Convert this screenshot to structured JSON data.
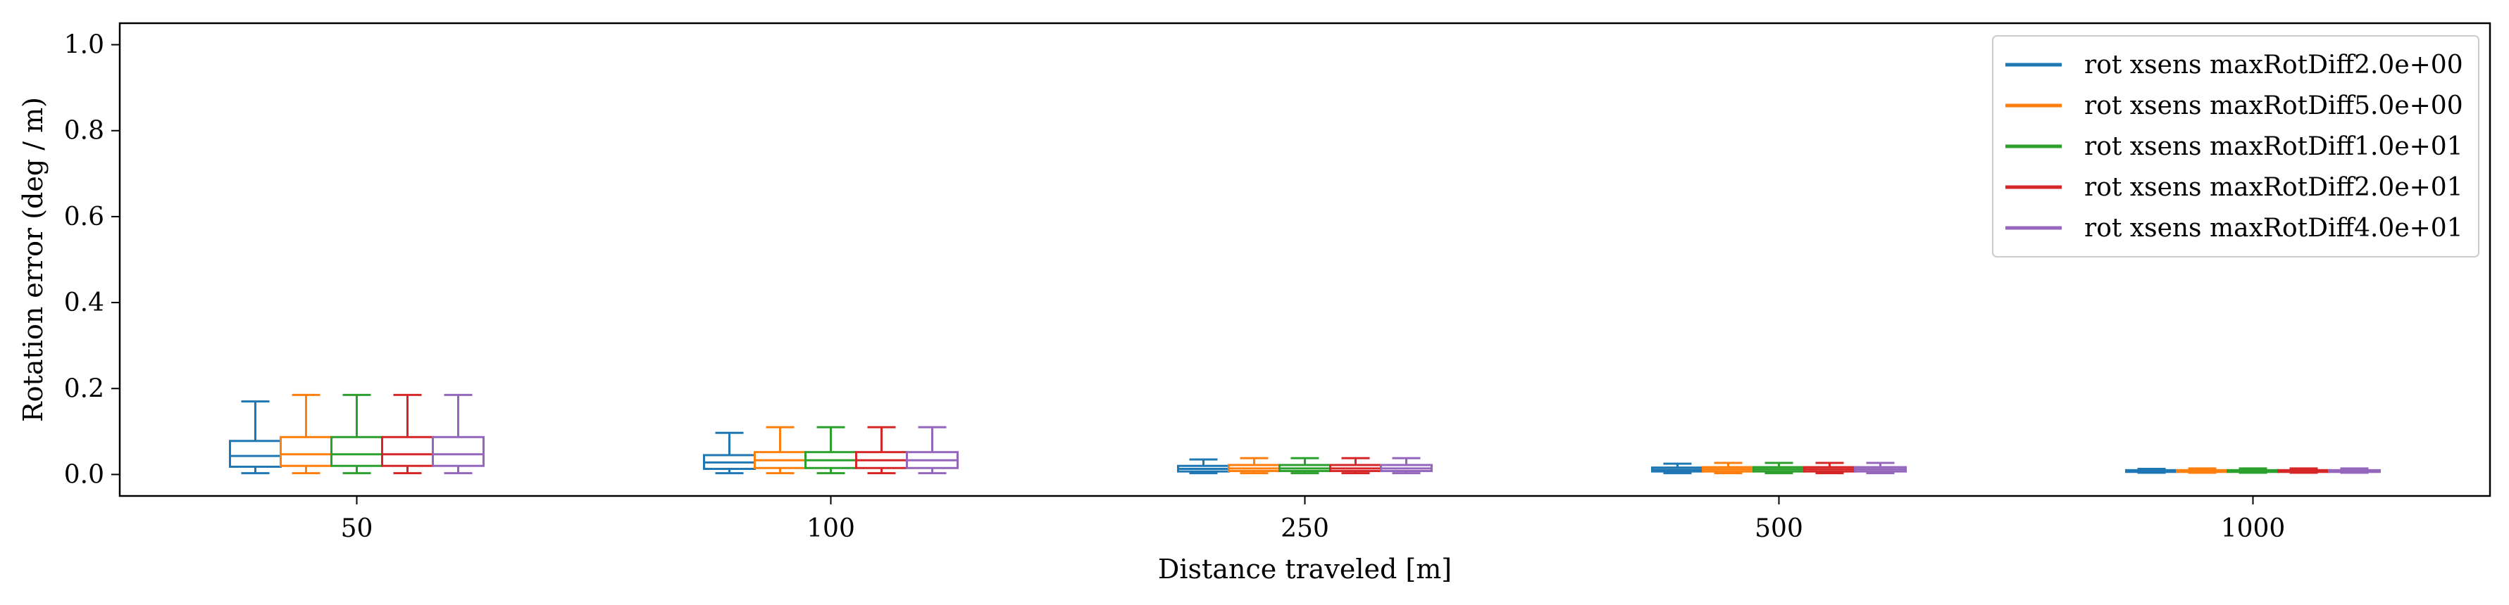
{
  "chart_data": {
    "type": "boxplot",
    "xlabel": "Distance traveled [m]",
    "ylabel": "Rotation error (deg / m)",
    "ylim": [
      -0.05,
      1.05
    ],
    "yticks": [
      0.0,
      0.2,
      0.4,
      0.6,
      0.8,
      1.0
    ],
    "ytick_labels": [
      "0.0",
      "0.2",
      "0.4",
      "0.6",
      "0.8",
      "1.0"
    ],
    "categories": [
      "50",
      "100",
      "250",
      "500",
      "1000"
    ],
    "legend_position": "top-right",
    "grid": false,
    "series": [
      {
        "name": "rot xsens maxRotDiff2.0e+00",
        "color": "#1f77b4",
        "boxes": [
          {
            "min": 0.003,
            "q1": 0.018,
            "median": 0.043,
            "q3": 0.078,
            "max": 0.17
          },
          {
            "min": 0.003,
            "q1": 0.013,
            "median": 0.028,
            "q3": 0.045,
            "max": 0.097
          },
          {
            "min": 0.003,
            "q1": 0.007,
            "median": 0.013,
            "q3": 0.02,
            "max": 0.035
          },
          {
            "min": 0.003,
            "q1": 0.007,
            "median": 0.011,
            "q3": 0.016,
            "max": 0.025
          },
          {
            "min": 0.004,
            "q1": 0.006,
            "median": 0.008,
            "q3": 0.01,
            "max": 0.013
          }
        ]
      },
      {
        "name": "rot xsens maxRotDiff5.0e+00",
        "color": "#ff7f0e",
        "boxes": [
          {
            "min": 0.003,
            "q1": 0.02,
            "median": 0.047,
            "q3": 0.087,
            "max": 0.185
          },
          {
            "min": 0.003,
            "q1": 0.015,
            "median": 0.033,
            "q3": 0.052,
            "max": 0.11
          },
          {
            "min": 0.003,
            "q1": 0.008,
            "median": 0.014,
            "q3": 0.022,
            "max": 0.038
          },
          {
            "min": 0.003,
            "q1": 0.007,
            "median": 0.012,
            "q3": 0.017,
            "max": 0.027
          },
          {
            "min": 0.004,
            "q1": 0.006,
            "median": 0.008,
            "q3": 0.01,
            "max": 0.014
          }
        ]
      },
      {
        "name": "rot xsens maxRotDiff1.0e+01",
        "color": "#2ca02c",
        "boxes": [
          {
            "min": 0.003,
            "q1": 0.02,
            "median": 0.047,
            "q3": 0.087,
            "max": 0.185
          },
          {
            "min": 0.003,
            "q1": 0.015,
            "median": 0.033,
            "q3": 0.052,
            "max": 0.11
          },
          {
            "min": 0.003,
            "q1": 0.008,
            "median": 0.014,
            "q3": 0.022,
            "max": 0.038
          },
          {
            "min": 0.003,
            "q1": 0.007,
            "median": 0.012,
            "q3": 0.017,
            "max": 0.027
          },
          {
            "min": 0.004,
            "q1": 0.006,
            "median": 0.008,
            "q3": 0.01,
            "max": 0.014
          }
        ]
      },
      {
        "name": "rot xsens maxRotDiff2.0e+01",
        "color": "#d62728",
        "boxes": [
          {
            "min": 0.003,
            "q1": 0.02,
            "median": 0.047,
            "q3": 0.087,
            "max": 0.185
          },
          {
            "min": 0.003,
            "q1": 0.015,
            "median": 0.033,
            "q3": 0.052,
            "max": 0.11
          },
          {
            "min": 0.003,
            "q1": 0.008,
            "median": 0.014,
            "q3": 0.022,
            "max": 0.038
          },
          {
            "min": 0.003,
            "q1": 0.007,
            "median": 0.012,
            "q3": 0.017,
            "max": 0.027
          },
          {
            "min": 0.004,
            "q1": 0.006,
            "median": 0.008,
            "q3": 0.01,
            "max": 0.014
          }
        ]
      },
      {
        "name": "rot xsens maxRotDiff4.0e+01",
        "color": "#9467bd",
        "boxes": [
          {
            "min": 0.003,
            "q1": 0.02,
            "median": 0.047,
            "q3": 0.087,
            "max": 0.185
          },
          {
            "min": 0.003,
            "q1": 0.015,
            "median": 0.033,
            "q3": 0.052,
            "max": 0.11
          },
          {
            "min": 0.003,
            "q1": 0.008,
            "median": 0.014,
            "q3": 0.022,
            "max": 0.038
          },
          {
            "min": 0.003,
            "q1": 0.007,
            "median": 0.012,
            "q3": 0.017,
            "max": 0.027
          },
          {
            "min": 0.004,
            "q1": 0.006,
            "median": 0.008,
            "q3": 0.01,
            "max": 0.014
          }
        ]
      }
    ]
  }
}
